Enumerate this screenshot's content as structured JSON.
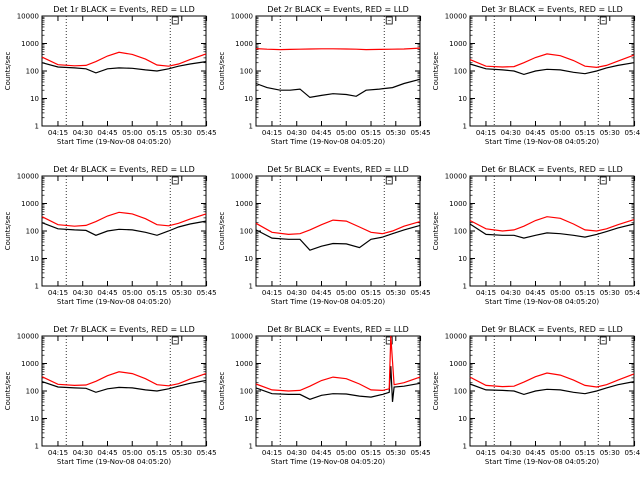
{
  "figure": {
    "ylabel": "Counts/sec",
    "xlabel": "Start Time (19-Nov-08 04:05:20)",
    "xticks": [
      "04:15",
      "04:30",
      "04:45",
      "05:00",
      "05:15",
      "05:30",
      "05:45"
    ],
    "yticks": [
      "1",
      "10",
      "100",
      "1000",
      "10000"
    ],
    "colors": {
      "events": "#000000",
      "lld": "#ff0000",
      "axes": "#000000",
      "background": "#ffffff"
    }
  },
  "chart_data": [
    {
      "type": "line",
      "title": "Det 1r BLACK = Events, RED = LLD",
      "xlabel": "Start Time (19-Nov-08 04:05:20)",
      "ylabel": "Counts/sec",
      "y_scale": "log",
      "ylim": [
        1,
        10000
      ],
      "xlim_minutes": [
        5.33,
        104.67
      ],
      "x": [
        5.33,
        15,
        25,
        32,
        38,
        45,
        52,
        60,
        68,
        75,
        82,
        88,
        95,
        104.67
      ],
      "series": [
        {
          "name": "Events",
          "values": [
            200,
            140,
            130,
            120,
            85,
            120,
            130,
            125,
            110,
            100,
            120,
            150,
            180,
            220
          ]
        },
        {
          "name": "LLD",
          "values": [
            320,
            170,
            155,
            160,
            220,
            350,
            480,
            400,
            270,
            165,
            150,
            180,
            260,
            420
          ]
        }
      ],
      "annotations": [
        "dotted vertical markers",
        "E small box top-right"
      ]
    },
    {
      "type": "line",
      "title": "Det 2r BLACK = Events, RED = LLD",
      "xlabel": "Start Time (19-Nov-08 04:05:20)",
      "ylabel": "Counts/sec",
      "y_scale": "log",
      "ylim": [
        1,
        10000
      ],
      "xlim_minutes": [
        5.33,
        104.67
      ],
      "x": [
        5.33,
        12,
        20,
        26,
        32,
        38,
        45,
        52,
        60,
        66,
        72,
        80,
        88,
        95,
        104.67
      ],
      "series": [
        {
          "name": "Events",
          "values": [
            35,
            25,
            20,
            20,
            22,
            11,
            13,
            15,
            14,
            12,
            20,
            22,
            25,
            35,
            50
          ]
        },
        {
          "name": "LLD",
          "values": [
            650,
            620,
            600,
            610,
            620,
            630,
            640,
            640,
            630,
            620,
            600,
            610,
            620,
            630,
            680
          ]
        }
      ],
      "annotations": [
        "dotted vertical markers",
        "E small box top-right"
      ]
    },
    {
      "type": "line",
      "title": "Det 3r BLACK = Events, RED = LLD",
      "xlabel": "Start Time (19-Nov-08 04:05:20)",
      "ylabel": "Counts/sec",
      "y_scale": "log",
      "ylim": [
        1,
        10000
      ],
      "xlim_minutes": [
        5.33,
        104.67
      ],
      "x": [
        5.33,
        15,
        25,
        32,
        38,
        45,
        52,
        60,
        68,
        75,
        82,
        88,
        95,
        104.67
      ],
      "series": [
        {
          "name": "Events",
          "values": [
            180,
            120,
            110,
            100,
            75,
            100,
            115,
            110,
            90,
            80,
            100,
            130,
            160,
            200
          ]
        },
        {
          "name": "LLD",
          "values": [
            260,
            150,
            140,
            145,
            200,
            310,
            420,
            360,
            240,
            150,
            135,
            160,
            230,
            380
          ]
        }
      ],
      "annotations": [
        "dotted vertical markers",
        "E small box top-right"
      ]
    },
    {
      "type": "line",
      "title": "Det 4r BLACK = Events, RED = LLD",
      "xlabel": "Start Time (19-Nov-08 04:05:20)",
      "ylabel": "Counts/sec",
      "y_scale": "log",
      "ylim": [
        1,
        10000
      ],
      "xlim_minutes": [
        5.33,
        104.67
      ],
      "x": [
        5.33,
        15,
        25,
        32,
        38,
        45,
        52,
        60,
        68,
        75,
        82,
        88,
        95,
        104.67
      ],
      "series": [
        {
          "name": "Events",
          "values": [
            200,
            120,
            110,
            105,
            70,
            100,
            115,
            110,
            90,
            70,
            100,
            140,
            180,
            230
          ]
        },
        {
          "name": "LLD",
          "values": [
            330,
            170,
            150,
            160,
            220,
            350,
            480,
            420,
            280,
            170,
            155,
            190,
            270,
            420
          ]
        }
      ],
      "annotations": [
        "dotted vertical markers",
        "E small box top-right"
      ]
    },
    {
      "type": "line",
      "title": "Det 5r BLACK = Events, RED = LLD",
      "xlabel": "Start Time (19-Nov-08 04:05:20)",
      "ylabel": "Counts/sec",
      "y_scale": "log",
      "ylim": [
        1,
        10000
      ],
      "xlim_minutes": [
        5.33,
        104.67
      ],
      "x": [
        5.33,
        15,
        25,
        32,
        38,
        45,
        52,
        60,
        68,
        75,
        82,
        88,
        95,
        104.67
      ],
      "series": [
        {
          "name": "Events",
          "values": [
            110,
            55,
            50,
            50,
            20,
            28,
            35,
            34,
            25,
            50,
            60,
            80,
            110,
            160
          ]
        },
        {
          "name": "LLD",
          "values": [
            190,
            90,
            75,
            80,
            110,
            170,
            250,
            230,
            140,
            90,
            80,
            100,
            150,
            220
          ]
        }
      ],
      "annotations": [
        "dotted vertical markers",
        "E small box top-right"
      ]
    },
    {
      "type": "line",
      "title": "Det 6r BLACK = Events, RED = LLD",
      "xlabel": "Start Time (19-Nov-08 04:05:20)",
      "ylabel": "Counts/sec",
      "y_scale": "log",
      "ylim": [
        1,
        10000
      ],
      "xlim_minutes": [
        5.33,
        104.67
      ],
      "x": [
        5.33,
        15,
        25,
        32,
        38,
        45,
        52,
        60,
        68,
        75,
        82,
        88,
        95,
        104.67
      ],
      "series": [
        {
          "name": "Events",
          "values": [
            180,
            75,
            70,
            70,
            55,
            70,
            85,
            80,
            70,
            60,
            75,
            95,
            130,
            180
          ]
        },
        {
          "name": "LLD",
          "values": [
            240,
            120,
            100,
            110,
            150,
            240,
            330,
            290,
            180,
            110,
            100,
            120,
            170,
            260
          ]
        }
      ],
      "annotations": [
        "dotted vertical markers",
        "E small box top-right"
      ]
    },
    {
      "type": "line",
      "title": "Det 7r BLACK = Events, RED = LLD",
      "xlabel": "Start Time (19-Nov-08 04:05:20)",
      "ylabel": "Counts/sec",
      "y_scale": "log",
      "ylim": [
        1,
        10000
      ],
      "xlim_minutes": [
        5.33,
        104.67
      ],
      "x": [
        5.33,
        15,
        25,
        32,
        38,
        45,
        52,
        60,
        68,
        75,
        82,
        88,
        95,
        104.67
      ],
      "series": [
        {
          "name": "Events",
          "values": [
            220,
            140,
            130,
            125,
            90,
            120,
            135,
            130,
            110,
            100,
            120,
            150,
            190,
            240
          ]
        },
        {
          "name": "LLD",
          "values": [
            330,
            175,
            160,
            165,
            225,
            360,
            500,
            430,
            280,
            170,
            155,
            185,
            270,
            430
          ]
        }
      ],
      "annotations": [
        "dotted vertical markers",
        "E small box top-right"
      ]
    },
    {
      "type": "line",
      "title": "Det 8r BLACK = Events, RED = LLD",
      "xlabel": "Start Time (19-Nov-08 04:05:20)",
      "ylabel": "Counts/sec",
      "y_scale": "log",
      "ylim": [
        1,
        10000
      ],
      "xlim_minutes": [
        5.33,
        104.67
      ],
      "x": [
        5.33,
        15,
        25,
        32,
        38,
        45,
        52,
        60,
        68,
        75,
        82,
        86,
        87,
        88,
        89,
        95,
        104.67
      ],
      "series": [
        {
          "name": "Events",
          "values": [
            130,
            80,
            75,
            75,
            50,
            70,
            80,
            78,
            65,
            60,
            75,
            90,
            800,
            40,
            140,
            150,
            190
          ]
        },
        {
          "name": "LLD",
          "values": [
            180,
            110,
            100,
            105,
            150,
            240,
            320,
            280,
            180,
            110,
            105,
            120,
            10000,
            1200,
            170,
            200,
            320
          ]
        }
      ],
      "annotations": [
        "dotted vertical markers",
        "E small box top-right",
        "spike near 05:32"
      ]
    },
    {
      "type": "line",
      "title": "Det 9r BLACK = Events, RED = LLD",
      "xlabel": "Start Time (19-Nov-08 04:05:20)",
      "ylabel": "Counts/sec",
      "y_scale": "log",
      "ylim": [
        1,
        10000
      ],
      "xlim_minutes": [
        5.33,
        104.67
      ],
      "x": [
        5.33,
        15,
        25,
        32,
        38,
        45,
        52,
        60,
        68,
        75,
        82,
        88,
        95,
        104.67
      ],
      "series": [
        {
          "name": "Events",
          "values": [
            180,
            110,
            105,
            100,
            75,
            100,
            115,
            110,
            90,
            80,
            100,
            130,
            170,
            220
          ]
        },
        {
          "name": "LLD",
          "values": [
            320,
            160,
            145,
            150,
            210,
            330,
            450,
            380,
            250,
            160,
            140,
            170,
            250,
            420
          ]
        }
      ],
      "annotations": [
        "dotted vertical markers",
        "E small box top-right"
      ]
    }
  ]
}
